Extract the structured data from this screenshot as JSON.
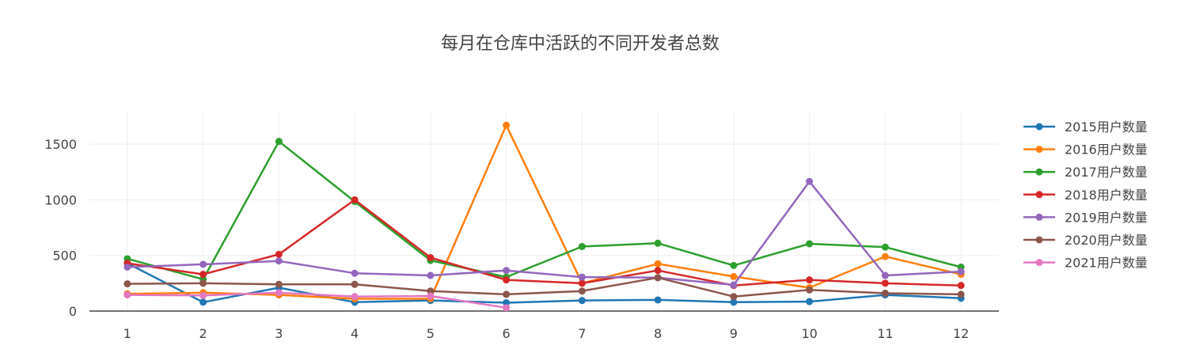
{
  "chart_data": {
    "type": "line",
    "title": "每月在仓库中活跃的不同开发者总数",
    "xlabel": "",
    "ylabel": "",
    "x": [
      1,
      2,
      3,
      4,
      5,
      6,
      7,
      8,
      9,
      10,
      11,
      12
    ],
    "x_tick_labels": [
      "1",
      "2",
      "3",
      "4",
      "5",
      "6",
      "7",
      "8",
      "9",
      "10",
      "11",
      "12"
    ],
    "ylim": [
      0,
      1800
    ],
    "y_ticks": [
      0,
      500,
      1000,
      1500
    ],
    "y_tick_labels": [
      "0",
      "500",
      "1000",
      "1500"
    ],
    "grid": true,
    "legend_position": "right",
    "series": [
      {
        "name": "2015用户数量",
        "color": "#1f77b4",
        "values": [
          430,
          80,
          210,
          80,
          95,
          75,
          95,
          100,
          80,
          85,
          145,
          115
        ]
      },
      {
        "name": "2016用户数量",
        "color": "#ff7f0e",
        "values": [
          155,
          165,
          145,
          110,
          110,
          1670,
          250,
          425,
          310,
          210,
          490,
          330
        ]
      },
      {
        "name": "2017用户数量",
        "color": "#2ca02c",
        "values": [
          470,
          285,
          1525,
          985,
          455,
          305,
          580,
          610,
          410,
          605,
          575,
          395
        ]
      },
      {
        "name": "2018用户数量",
        "color": "#d62728",
        "values": [
          430,
          330,
          510,
          1000,
          480,
          280,
          250,
          365,
          230,
          280,
          250,
          230
        ]
      },
      {
        "name": "2019用户数量",
        "color": "#9467bd",
        "values": [
          395,
          420,
          450,
          340,
          320,
          365,
          305,
          300,
          235,
          1165,
          320,
          355
        ]
      },
      {
        "name": "2020用户数量",
        "color": "#8c564b",
        "values": [
          245,
          250,
          240,
          240,
          180,
          150,
          180,
          300,
          130,
          190,
          160,
          150
        ]
      },
      {
        "name": "2021用户数量",
        "color": "#e377c2",
        "values": [
          145,
          140,
          165,
          130,
          135,
          30,
          null,
          null,
          null,
          null,
          null,
          null
        ]
      }
    ]
  }
}
